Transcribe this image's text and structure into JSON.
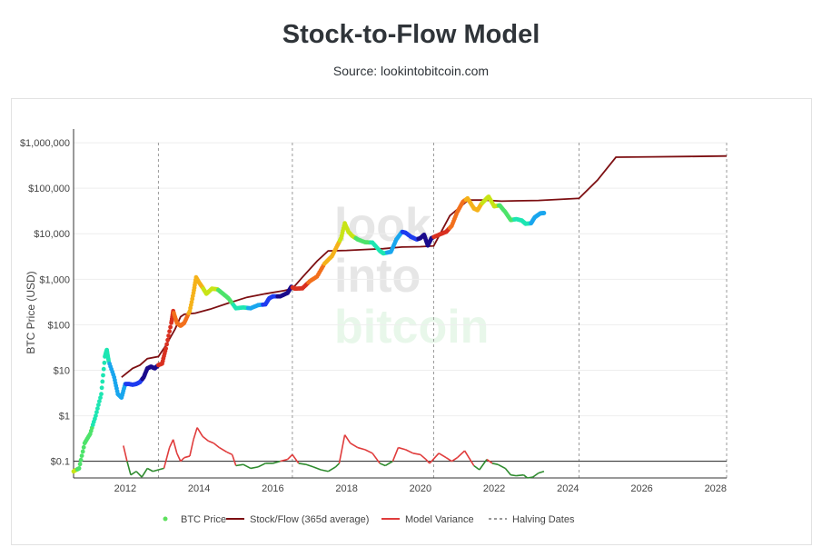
{
  "title": "Stock-to-Flow Model",
  "subtitle": "Source: lookintobitcoin.com",
  "watermark": [
    "look",
    "into",
    "bitcoin"
  ],
  "chart_data": {
    "type": "line",
    "title": "Stock-to-Flow Model",
    "subtitle": "Source: lookintobitcoin.com",
    "ylabel": "BTC Price (USD)",
    "xlabel": "",
    "y_scale": "log",
    "ylim": [
      0.043,
      2000000
    ],
    "xlim": [
      2010.6,
      2028.3
    ],
    "x_ticks": [
      {
        "value": 2012,
        "label": "2012"
      },
      {
        "value": 2014,
        "label": "2014"
      },
      {
        "value": 2016,
        "label": "2016"
      },
      {
        "value": 2018,
        "label": "2018"
      },
      {
        "value": 2020,
        "label": "2020"
      },
      {
        "value": 2022,
        "label": "2022"
      },
      {
        "value": 2024,
        "label": "2024"
      },
      {
        "value": 2026,
        "label": "2026"
      },
      {
        "value": 2028,
        "label": "2028"
      }
    ],
    "y_ticks": [
      {
        "value": 1000000,
        "label": "$1,000,000"
      },
      {
        "value": 100000,
        "label": "$100,000"
      },
      {
        "value": 10000,
        "label": "$10,000"
      },
      {
        "value": 1000,
        "label": "$1,000"
      },
      {
        "value": 100,
        "label": "$100"
      },
      {
        "value": 10,
        "label": "$10"
      },
      {
        "value": 1,
        "label": "$1"
      },
      {
        "value": 0.1,
        "label": "$0.1"
      }
    ],
    "grid": true,
    "legend_position": "bottom",
    "halving_dates": [
      2012.9,
      2016.53,
      2020.36,
      2024.3,
      2028.3
    ],
    "reference_line": 0.1,
    "series": [
      {
        "name": "BTC Price",
        "kind": "scatter",
        "color_scale": [
          "#1a0a8c",
          "#1e3cf0",
          "#19a6ee",
          "#1de6b2",
          "#4de36a",
          "#c8e416",
          "#f5b21a",
          "#f2701d",
          "#d93020"
        ],
        "points": [
          [
            2010.6,
            0.06
          ],
          [
            2010.75,
            0.07
          ],
          [
            2010.9,
            0.25
          ],
          [
            2011.05,
            0.4
          ],
          [
            2011.2,
            1.0
          ],
          [
            2011.35,
            3.0
          ],
          [
            2011.45,
            20
          ],
          [
            2011.5,
            28
          ],
          [
            2011.55,
            16
          ],
          [
            2011.7,
            7
          ],
          [
            2011.8,
            3
          ],
          [
            2011.9,
            2.5
          ],
          [
            2012.0,
            5
          ],
          [
            2012.1,
            5
          ],
          [
            2012.2,
            4.8
          ],
          [
            2012.3,
            5
          ],
          [
            2012.4,
            5.5
          ],
          [
            2012.5,
            7
          ],
          [
            2012.6,
            11
          ],
          [
            2012.7,
            12
          ],
          [
            2012.8,
            11
          ],
          [
            2012.9,
            13
          ],
          [
            2013.0,
            14
          ],
          [
            2013.1,
            30
          ],
          [
            2013.25,
            110
          ],
          [
            2013.3,
            200
          ],
          [
            2013.4,
            110
          ],
          [
            2013.5,
            95
          ],
          [
            2013.6,
            110
          ],
          [
            2013.75,
            200
          ],
          [
            2013.85,
            500
          ],
          [
            2013.92,
            1100
          ],
          [
            2014.0,
            850
          ],
          [
            2014.1,
            650
          ],
          [
            2014.2,
            480
          ],
          [
            2014.35,
            620
          ],
          [
            2014.5,
            600
          ],
          [
            2014.65,
            480
          ],
          [
            2014.8,
            380
          ],
          [
            2015.0,
            230
          ],
          [
            2015.2,
            240
          ],
          [
            2015.4,
            230
          ],
          [
            2015.6,
            270
          ],
          [
            2015.8,
            280
          ],
          [
            2015.9,
            380
          ],
          [
            2016.0,
            420
          ],
          [
            2016.2,
            420
          ],
          [
            2016.4,
            500
          ],
          [
            2016.5,
            680
          ],
          [
            2016.6,
            620
          ],
          [
            2016.8,
            630
          ],
          [
            2017.0,
            900
          ],
          [
            2017.2,
            1150
          ],
          [
            2017.4,
            2200
          ],
          [
            2017.6,
            3200
          ],
          [
            2017.75,
            5500
          ],
          [
            2017.85,
            8000
          ],
          [
            2017.95,
            17000
          ],
          [
            2018.05,
            11000
          ],
          [
            2018.15,
            9000
          ],
          [
            2018.3,
            7500
          ],
          [
            2018.5,
            6500
          ],
          [
            2018.7,
            6400
          ],
          [
            2018.9,
            4200
          ],
          [
            2019.0,
            3700
          ],
          [
            2019.2,
            4000
          ],
          [
            2019.35,
            7500
          ],
          [
            2019.5,
            11000
          ],
          [
            2019.6,
            10500
          ],
          [
            2019.75,
            8500
          ],
          [
            2019.9,
            7500
          ],
          [
            2020.0,
            8000
          ],
          [
            2020.1,
            9500
          ],
          [
            2020.2,
            5500
          ],
          [
            2020.3,
            8000
          ],
          [
            2020.5,
            9500
          ],
          [
            2020.7,
            11000
          ],
          [
            2020.85,
            15000
          ],
          [
            2021.0,
            30000
          ],
          [
            2021.15,
            50000
          ],
          [
            2021.28,
            60000
          ],
          [
            2021.45,
            36000
          ],
          [
            2021.55,
            33000
          ],
          [
            2021.65,
            45000
          ],
          [
            2021.8,
            60000
          ],
          [
            2021.85,
            65000
          ],
          [
            2022.0,
            40000
          ],
          [
            2022.15,
            42000
          ],
          [
            2022.3,
            30000
          ],
          [
            2022.45,
            20000
          ],
          [
            2022.6,
            21000
          ],
          [
            2022.75,
            19500
          ],
          [
            2022.85,
            16500
          ],
          [
            2023.0,
            17000
          ],
          [
            2023.1,
            23000
          ],
          [
            2023.25,
            28000
          ],
          [
            2023.35,
            28500
          ]
        ]
      },
      {
        "name": "Stock/Flow (365d average)",
        "kind": "line",
        "color": "#7d0f12",
        "points": [
          [
            2011.9,
            7
          ],
          [
            2012.2,
            11
          ],
          [
            2012.4,
            13
          ],
          [
            2012.6,
            18
          ],
          [
            2012.9,
            20
          ],
          [
            2013.1,
            35
          ],
          [
            2013.35,
            80
          ],
          [
            2013.5,
            150
          ],
          [
            2013.6,
            170
          ],
          [
            2013.9,
            180
          ],
          [
            2014.3,
            220
          ],
          [
            2014.8,
            300
          ],
          [
            2015.3,
            400
          ],
          [
            2015.8,
            480
          ],
          [
            2016.3,
            560
          ],
          [
            2016.53,
            620
          ],
          [
            2016.8,
            1100
          ],
          [
            2017.2,
            2500
          ],
          [
            2017.5,
            4200
          ],
          [
            2018.0,
            4300
          ],
          [
            2018.5,
            4500
          ],
          [
            2019.0,
            4700
          ],
          [
            2019.5,
            5100
          ],
          [
            2020.0,
            5200
          ],
          [
            2020.36,
            5400
          ],
          [
            2020.8,
            25000
          ],
          [
            2021.3,
            55000
          ],
          [
            2021.7,
            55000
          ],
          [
            2022.2,
            52000
          ],
          [
            2022.6,
            53000
          ],
          [
            2023.2,
            54000
          ],
          [
            2024.3,
            60000
          ],
          [
            2024.8,
            150000
          ],
          [
            2025.3,
            480000
          ],
          [
            2026.3,
            490000
          ],
          [
            2027.3,
            500000
          ],
          [
            2028.3,
            510000
          ]
        ]
      },
      {
        "name": "Model Variance",
        "kind": "line",
        "color_high": "#e03c3c",
        "color_low": "#2e8b2e",
        "points": [
          [
            2011.95,
            0.22
          ],
          [
            2012.05,
            0.1
          ],
          [
            2012.15,
            0.05
          ],
          [
            2012.3,
            0.06
          ],
          [
            2012.45,
            0.045
          ],
          [
            2012.6,
            0.07
          ],
          [
            2012.75,
            0.06
          ],
          [
            2012.9,
            0.065
          ],
          [
            2013.05,
            0.07
          ],
          [
            2013.2,
            0.2
          ],
          [
            2013.3,
            0.3
          ],
          [
            2013.4,
            0.15
          ],
          [
            2013.5,
            0.1
          ],
          [
            2013.6,
            0.12
          ],
          [
            2013.75,
            0.13
          ],
          [
            2013.85,
            0.3
          ],
          [
            2013.95,
            0.55
          ],
          [
            2014.1,
            0.35
          ],
          [
            2014.25,
            0.28
          ],
          [
            2014.4,
            0.25
          ],
          [
            2014.55,
            0.2
          ],
          [
            2014.75,
            0.16
          ],
          [
            2014.9,
            0.14
          ],
          [
            2015.0,
            0.08
          ],
          [
            2015.2,
            0.085
          ],
          [
            2015.4,
            0.07
          ],
          [
            2015.6,
            0.075
          ],
          [
            2015.8,
            0.09
          ],
          [
            2016.0,
            0.09
          ],
          [
            2016.2,
            0.1
          ],
          [
            2016.4,
            0.11
          ],
          [
            2016.53,
            0.14
          ],
          [
            2016.7,
            0.09
          ],
          [
            2016.9,
            0.085
          ],
          [
            2017.1,
            0.075
          ],
          [
            2017.3,
            0.065
          ],
          [
            2017.5,
            0.06
          ],
          [
            2017.7,
            0.075
          ],
          [
            2017.8,
            0.09
          ],
          [
            2017.95,
            0.38
          ],
          [
            2018.1,
            0.25
          ],
          [
            2018.3,
            0.2
          ],
          [
            2018.5,
            0.18
          ],
          [
            2018.7,
            0.15
          ],
          [
            2018.9,
            0.09
          ],
          [
            2019.05,
            0.08
          ],
          [
            2019.25,
            0.1
          ],
          [
            2019.4,
            0.2
          ],
          [
            2019.6,
            0.18
          ],
          [
            2019.8,
            0.15
          ],
          [
            2020.0,
            0.14
          ],
          [
            2020.15,
            0.11
          ],
          [
            2020.25,
            0.09
          ],
          [
            2020.5,
            0.15
          ],
          [
            2020.7,
            0.12
          ],
          [
            2020.85,
            0.1
          ],
          [
            2021.0,
            0.12
          ],
          [
            2021.2,
            0.17
          ],
          [
            2021.45,
            0.08
          ],
          [
            2021.6,
            0.065
          ],
          [
            2021.8,
            0.11
          ],
          [
            2021.95,
            0.09
          ],
          [
            2022.1,
            0.085
          ],
          [
            2022.3,
            0.07
          ],
          [
            2022.45,
            0.05
          ],
          [
            2022.6,
            0.048
          ],
          [
            2022.8,
            0.05
          ],
          [
            2022.9,
            0.043
          ],
          [
            2023.05,
            0.045
          ],
          [
            2023.2,
            0.055
          ],
          [
            2023.35,
            0.06
          ]
        ]
      },
      {
        "name": "Halving Dates",
        "kind": "vline",
        "color": "#9a9a9a"
      }
    ]
  }
}
